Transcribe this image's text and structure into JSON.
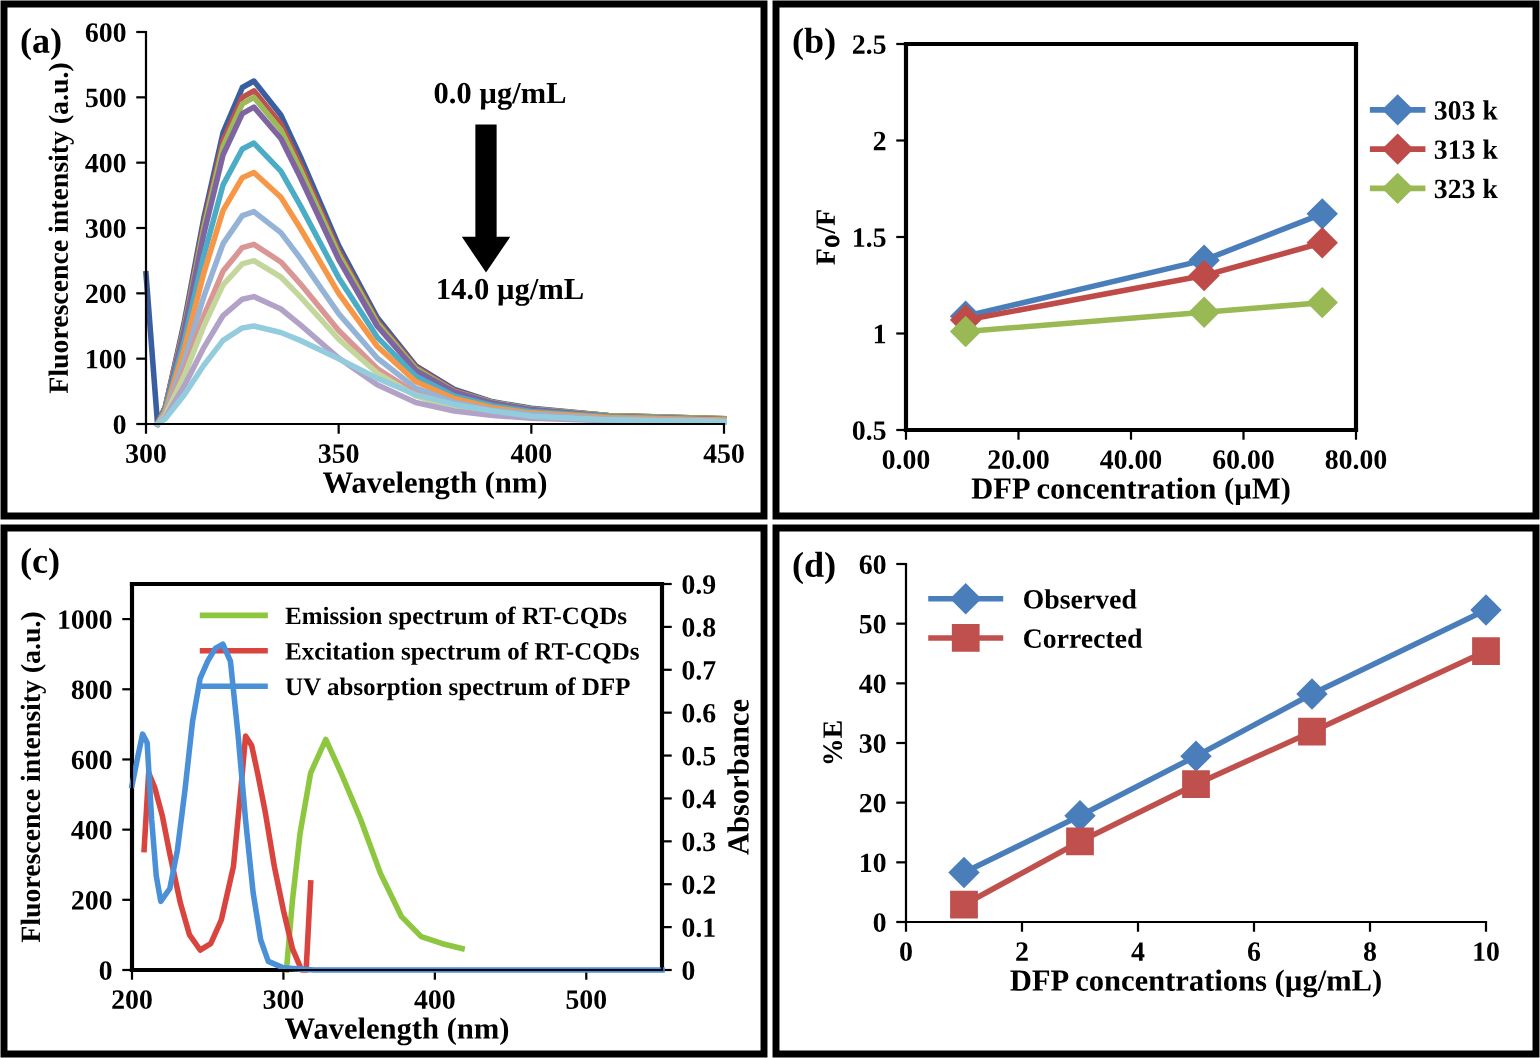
{
  "chart_data": [
    {
      "type": "line",
      "xlabel": "Wavelength (nm)",
      "ylabel": "Fluorescence intensity (a.u.)",
      "annotations": [
        "(a)",
        "0.0 µg/mL",
        "14.0 µg/mL"
      ],
      "x": [
        303,
        305,
        310,
        315,
        320,
        325,
        328,
        335,
        340,
        350,
        360,
        370,
        380,
        390,
        400,
        420,
        450
      ],
      "xlim": [
        300,
        450
      ],
      "xticks": [
        300,
        350,
        400,
        450
      ],
      "ylim": [
        0,
        600
      ],
      "yticks": [
        0,
        100,
        200,
        300,
        400,
        500,
        600
      ],
      "marker": "none",
      "line_style": "solid",
      "series": [
        {
          "color": "#3a5fa0",
          "x": [
            300,
            303,
            305,
            310,
            315,
            320,
            325,
            328,
            335,
            340,
            350,
            360,
            370,
            380,
            390,
            400,
            420,
            450
          ],
          "values": [
            230,
            0,
            26,
            158,
            315,
            446,
            515,
            525,
            473,
            410,
            273,
            163,
            89,
            53,
            34,
            24,
            13,
            8
          ]
        },
        {
          "color": "#c0504d",
          "values": [
            0,
            26,
            153,
            306,
            434,
            500,
            510,
            459,
            398,
            265,
            158,
            87,
            51,
            33,
            23,
            13,
            8
          ]
        },
        {
          "color": "#9bbb59",
          "values": [
            0,
            25,
            150,
            300,
            425,
            490,
            500,
            450,
            390,
            260,
            155,
            85,
            50,
            33,
            23,
            13,
            8
          ]
        },
        {
          "color": "#8064a2",
          "values": [
            0,
            24,
            146,
            291,
            412,
            475,
            485,
            437,
            378,
            252,
            150,
            82,
            49,
            32,
            22,
            12,
            7
          ]
        },
        {
          "color": "#4bacc6",
          "values": [
            0,
            22,
            129,
            258,
            366,
            421,
            430,
            387,
            335,
            224,
            133,
            73,
            43,
            28,
            19,
            11,
            6
          ]
        },
        {
          "color": "#f79646",
          "values": [
            0,
            19,
            116,
            231,
            327,
            377,
            385,
            347,
            300,
            200,
            119,
            65,
            39,
            25,
            17,
            10,
            6
          ]
        },
        {
          "color": "#95b3d7",
          "values": [
            0,
            16,
            98,
            195,
            276,
            319,
            325,
            293,
            254,
            169,
            101,
            55,
            33,
            21,
            15,
            8,
            5
          ]
        },
        {
          "color": "#d99694",
          "values": [
            0,
            14,
            83,
            165,
            234,
            270,
            275,
            248,
            215,
            143,
            85,
            47,
            28,
            18,
            12,
            7,
            4
          ]
        },
        {
          "color": "#c3d69b",
          "values": [
            0,
            13,
            75,
            150,
            213,
            245,
            250,
            225,
            195,
            130,
            78,
            43,
            25,
            16,
            11,
            6,
            4
          ]
        },
        {
          "color": "#b3a2c7",
          "values": [
            0,
            10,
            59,
            117,
            166,
            191,
            195,
            176,
            152,
            101,
            60,
            33,
            20,
            13,
            9,
            5,
            3
          ]
        },
        {
          "color": "#93cddd",
          "values": [
            0,
            8,
            45,
            90,
            128,
            147,
            150,
            140,
            128,
            100,
            70,
            45,
            30,
            20,
            12,
            6,
            3
          ]
        }
      ]
    },
    {
      "type": "line",
      "xlabel": "DFP concentration (µM)",
      "ylabel": "F$_{0}$/F",
      "annotations": [
        "(b)"
      ],
      "x": [
        10.6,
        53,
        74
      ],
      "xlim": [
        0,
        80
      ],
      "xticks": [
        {
          "value": 0,
          "label": "0.00"
        },
        {
          "value": 20,
          "label": "20.00"
        },
        {
          "value": 40,
          "label": "40.00"
        },
        {
          "value": 60,
          "label": "60.00"
        },
        {
          "value": 80,
          "label": "80.00"
        }
      ],
      "ylim": [
        0.5,
        2.5
      ],
      "yticks": [
        0.5,
        1,
        1.5,
        2,
        2.5
      ],
      "marker": "diamond",
      "line_style": "solid",
      "legend": "right",
      "series": [
        {
          "name": "303 k",
          "color": "#4a7ebb",
          "values": [
            1.09,
            1.38,
            1.62
          ]
        },
        {
          "name": "313 k",
          "color": "#be4b48",
          "values": [
            1.07,
            1.3,
            1.47
          ]
        },
        {
          "name": "323 k",
          "color": "#98b954",
          "values": [
            1.01,
            1.11,
            1.16
          ]
        }
      ]
    },
    {
      "type": "line",
      "xlabel": "Wavelength (nm)",
      "ylabel": "Fluorescence intensity (a.u.)",
      "y2label": "Absorbance",
      "annotations": [
        "(c)"
      ],
      "xlim": [
        200,
        550
      ],
      "xticks": [
        200,
        300,
        400,
        500
      ],
      "ylim": [
        0,
        1100
      ],
      "yticks": [
        0,
        200,
        400,
        600,
        800,
        1000
      ],
      "y2lim": [
        0,
        0.9
      ],
      "y2ticks": [
        0,
        0.1,
        0.2,
        0.3,
        0.4,
        0.5,
        0.6,
        0.7,
        0.8,
        0.9
      ],
      "marker": "none",
      "line_style": "solid",
      "legend": "top right",
      "series": [
        {
          "name": "Emission spectrum of RT-CQDs",
          "color": "#8dc63f",
          "x": [
            302,
            306,
            311,
            318,
            328,
            338,
            351,
            364,
            378,
            391,
            405,
            418
          ],
          "values": [
            0,
            200,
            390,
            562,
            657,
            562,
            429,
            276,
            152,
            95,
            75,
            61
          ]
        },
        {
          "name": "Excitation spectrum of RT-CQDs",
          "color": "#d9453e",
          "x": [
            208,
            211,
            215,
            220,
            225,
            232,
            238,
            245,
            252,
            259,
            267,
            272,
            275,
            279,
            283,
            288,
            294,
            300,
            306,
            312,
            315,
            318
          ],
          "values": [
            343,
            562,
            520,
            440,
            330,
            190,
            100,
            57,
            75,
            143,
            295,
            520,
            667,
            640,
            560,
            450,
            295,
            170,
            60,
            0,
            0,
            248
          ]
        },
        {
          "name": "UV absorption spectrum of DFP",
          "color": "#4a90d9",
          "axis": "y2",
          "x": [
            200,
            204,
            207,
            210,
            213,
            216,
            219,
            225,
            230,
            235,
            240,
            245,
            250,
            255,
            260,
            265,
            270,
            275,
            280,
            285,
            290,
            300,
            320,
            550
          ],
          "values": [
            0.43,
            0.5,
            0.55,
            0.53,
            0.35,
            0.22,
            0.16,
            0.19,
            0.28,
            0.42,
            0.58,
            0.68,
            0.72,
            0.75,
            0.76,
            0.72,
            0.55,
            0.35,
            0.18,
            0.07,
            0.02,
            0.005,
            0,
            0
          ]
        }
      ]
    },
    {
      "type": "line",
      "xlabel": "DFP concentrations (µg/mL)",
      "ylabel": "%E",
      "annotations": [
        "(d)"
      ],
      "x": [
        1,
        3,
        5,
        7,
        10
      ],
      "xlim": [
        0,
        10
      ],
      "xticks": [
        0,
        2,
        4,
        6,
        8,
        10
      ],
      "ylim": [
        0,
        60
      ],
      "yticks": [
        0,
        10,
        20,
        30,
        40,
        50,
        60
      ],
      "line_style": "solid",
      "legend": "top left",
      "series": [
        {
          "name": "Observed",
          "color": "#4a7ebb",
          "marker": "diamond",
          "values": [
            8.3,
            17.8,
            27.8,
            38.2,
            52.3
          ]
        },
        {
          "name": "Corrected",
          "color": "#c0504d",
          "marker": "square",
          "values": [
            2.9,
            13.5,
            23.1,
            31.9,
            45.4
          ]
        }
      ]
    }
  ]
}
